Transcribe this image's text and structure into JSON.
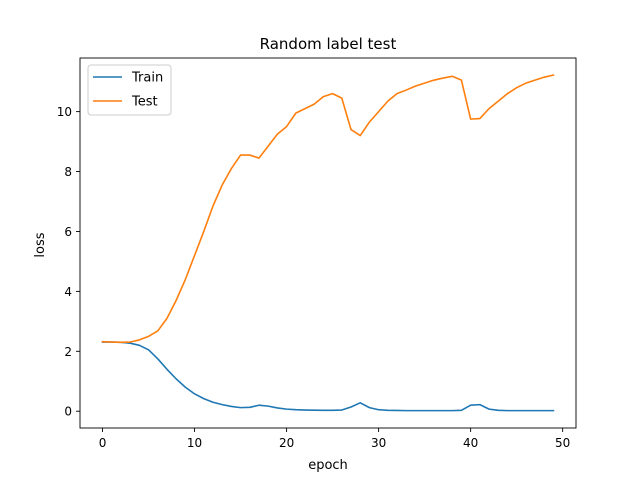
{
  "chart_data": {
    "type": "line",
    "title": "Random label test",
    "xlabel": "epoch",
    "ylabel": "loss",
    "xlim": [
      -2.45,
      51.45
    ],
    "ylim": [
      -0.56,
      11.79
    ],
    "xticks": [
      0,
      10,
      20,
      30,
      40,
      50
    ],
    "yticks": [
      0,
      2,
      4,
      6,
      8,
      10
    ],
    "grid": false,
    "legend_position": "top-left",
    "x": [
      0,
      1,
      2,
      3,
      4,
      5,
      6,
      7,
      8,
      9,
      10,
      11,
      12,
      13,
      14,
      15,
      16,
      17,
      18,
      19,
      20,
      21,
      22,
      23,
      24,
      25,
      26,
      27,
      28,
      29,
      30,
      31,
      32,
      33,
      34,
      35,
      36,
      37,
      38,
      39,
      40,
      41,
      42,
      43,
      44,
      45,
      46,
      47,
      48,
      49
    ],
    "series": [
      {
        "name": "Train",
        "color": "#1f77b4",
        "values": [
          2.31,
          2.31,
          2.3,
          2.27,
          2.2,
          2.05,
          1.75,
          1.4,
          1.08,
          0.8,
          0.58,
          0.42,
          0.3,
          0.22,
          0.16,
          0.12,
          0.13,
          0.2,
          0.17,
          0.11,
          0.07,
          0.05,
          0.04,
          0.035,
          0.03,
          0.03,
          0.04,
          0.14,
          0.28,
          0.12,
          0.05,
          0.03,
          0.025,
          0.02,
          0.02,
          0.02,
          0.02,
          0.02,
          0.02,
          0.03,
          0.2,
          0.22,
          0.07,
          0.03,
          0.02,
          0.02,
          0.02,
          0.02,
          0.02,
          0.02
        ]
      },
      {
        "name": "Test",
        "color": "#ff7f0e",
        "values": [
          2.32,
          2.31,
          2.3,
          2.31,
          2.38,
          2.5,
          2.68,
          3.1,
          3.7,
          4.4,
          5.2,
          6.0,
          6.85,
          7.55,
          8.1,
          8.55,
          8.55,
          8.45,
          8.85,
          9.25,
          9.5,
          9.95,
          10.1,
          10.25,
          10.5,
          10.6,
          10.45,
          9.4,
          9.2,
          9.65,
          10.0,
          10.35,
          10.6,
          10.72,
          10.85,
          10.95,
          11.05,
          11.12,
          11.18,
          11.05,
          9.75,
          9.77,
          10.1,
          10.35,
          10.6,
          10.8,
          10.95,
          11.05,
          11.15,
          11.22
        ]
      }
    ]
  }
}
